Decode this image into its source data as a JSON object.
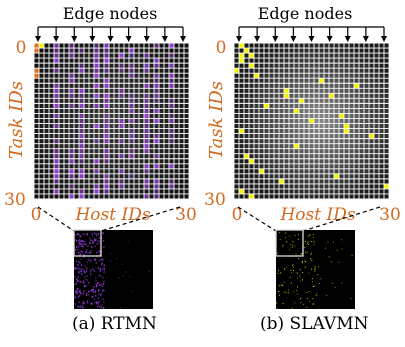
{
  "panels": [
    {
      "id": "a",
      "edge_label": "Edge nodes",
      "y_axis_label": "Task IDs",
      "x_axis_label": "Host IDs",
      "y_tick_top": "0",
      "y_tick_bottom": "30",
      "x_tick_left": "0",
      "x_tick_right": "30",
      "caption": "(a) RTMN",
      "matrix_style": "purple-stripes"
    },
    {
      "id": "b",
      "edge_label": "Edge nodes",
      "y_axis_label": "Task IDs",
      "x_axis_label": "Host IDs",
      "y_tick_top": "0",
      "y_tick_bottom": "30",
      "x_tick_left": "0",
      "x_tick_right": "30",
      "caption": "(b) SLAVMN",
      "matrix_style": "yellow-sparse"
    }
  ],
  "colors": {
    "tick_label": "#d2691e",
    "axis_label": "#d2691e",
    "grid_line": "#ffffff",
    "matrix_bg": "#111111",
    "purple": "#9a40e0",
    "yellow": "#f2f200",
    "orange_cell": "#e07020"
  }
}
